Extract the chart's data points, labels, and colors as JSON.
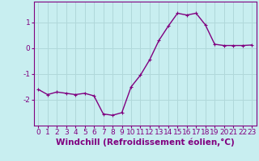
{
  "x": [
    0,
    1,
    2,
    3,
    4,
    5,
    6,
    7,
    8,
    9,
    10,
    11,
    12,
    13,
    14,
    15,
    16,
    17,
    18,
    19,
    20,
    21,
    22,
    23
  ],
  "y": [
    -1.6,
    -1.8,
    -1.7,
    -1.75,
    -1.8,
    -1.75,
    -1.85,
    -2.55,
    -2.6,
    -2.5,
    -1.5,
    -1.05,
    -0.45,
    0.3,
    0.85,
    1.35,
    1.28,
    1.35,
    0.9,
    0.15,
    0.1,
    0.1,
    0.1,
    0.12
  ],
  "line_color": "#800080",
  "marker": "+",
  "marker_color": "#800080",
  "bg_color": "#c8eef0",
  "grid_color": "#b0d8da",
  "axis_color": "#800080",
  "tick_color": "#800080",
  "xlabel": "Windchill (Refroidissement éolien,°C)",
  "xlabel_color": "#800080",
  "xlim": [
    -0.5,
    23.5
  ],
  "ylim": [
    -3.0,
    1.8
  ],
  "yticks": [
    -2,
    -1,
    0,
    1
  ],
  "xticks": [
    0,
    1,
    2,
    3,
    4,
    5,
    6,
    7,
    8,
    9,
    10,
    11,
    12,
    13,
    14,
    15,
    16,
    17,
    18,
    19,
    20,
    21,
    22,
    23
  ],
  "tick_fontsize": 6.5,
  "xlabel_fontsize": 7.5,
  "linewidth": 1.0,
  "markersize": 3.5
}
